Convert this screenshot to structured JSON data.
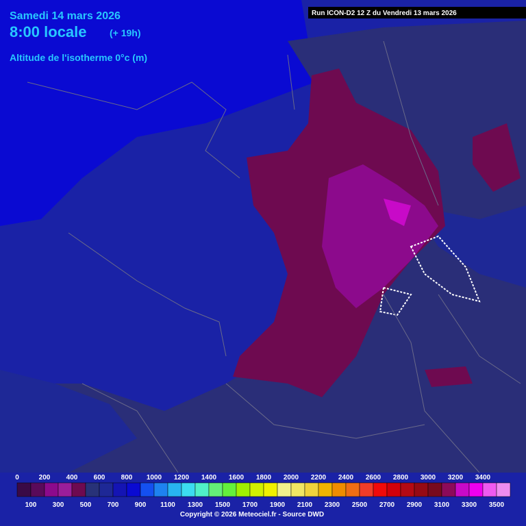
{
  "header": {
    "date": "Samedi 14 mars 2026",
    "time": "8:00 locale",
    "offset": "(+ 19h)",
    "subtitle": "Altitude de l'isotherme 0°c (m)",
    "run": "Run ICON-D2 12 Z du Vendredi 13 mars 2026"
  },
  "legend": {
    "range": [
      0,
      3600
    ],
    "top_labels": [
      0,
      200,
      400,
      600,
      800,
      1000,
      1200,
      1400,
      1600,
      1800,
      2000,
      2200,
      2400,
      2600,
      2800,
      3000,
      3200,
      3400
    ],
    "bottom_labels": [
      100,
      300,
      500,
      700,
      900,
      1100,
      1300,
      1500,
      1700,
      1900,
      2100,
      2300,
      2500,
      2700,
      2900,
      3100,
      3300,
      3500
    ],
    "colors": [
      "#3a0a46",
      "#5a0a5a",
      "#8c0a8c",
      "#9a1e9a",
      "#6e0a50",
      "#283278",
      "#1e2896",
      "#1414b4",
      "#0a0ad2",
      "#1450f0",
      "#1e82f0",
      "#28b4f0",
      "#3cdcf0",
      "#50f0c8",
      "#64f078",
      "#64f03c",
      "#a0f000",
      "#d2f000",
      "#f0f000",
      "#f0f08c",
      "#f0e664",
      "#f0d23c",
      "#f0b400",
      "#f08c00",
      "#f06e14",
      "#f03c28",
      "#f00a0a",
      "#d2000a",
      "#b40a14",
      "#960a14",
      "#780a1e",
      "#8c0a5a",
      "#c80ac8",
      "#f000f0",
      "#f05af0",
      "#f08cf0"
    ]
  },
  "footer": {
    "copyright": "Copyright © 2026 Meteociel.fr - Source DWD"
  }
}
